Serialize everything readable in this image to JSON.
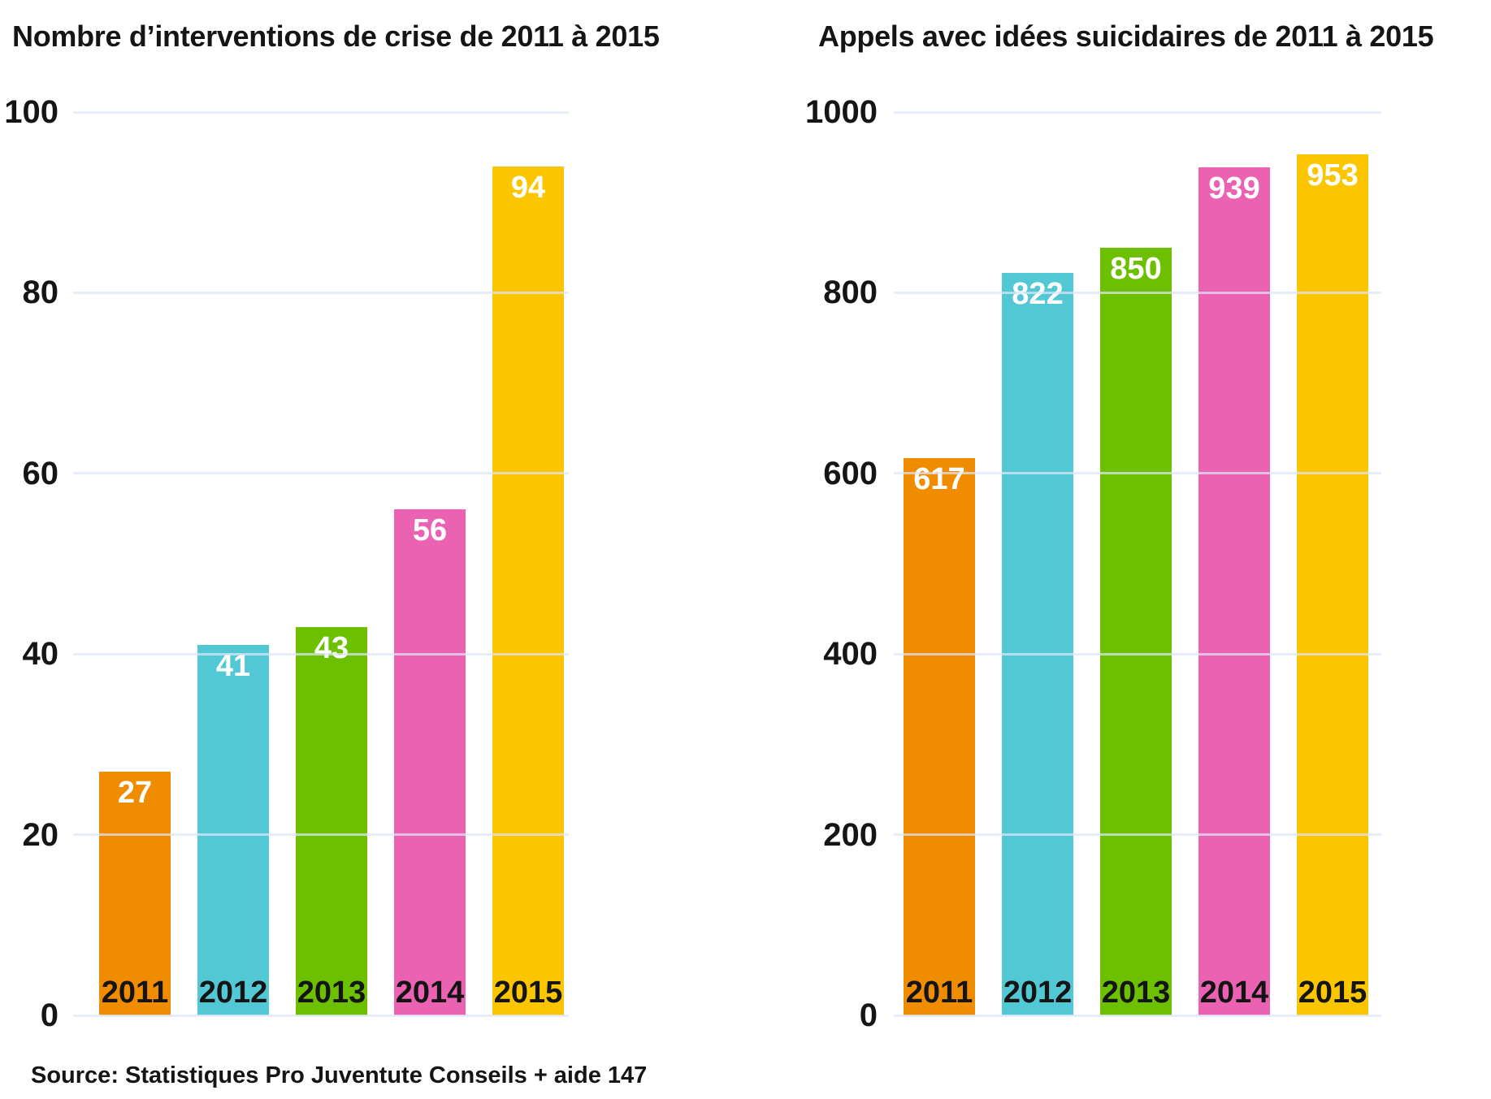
{
  "source": "Source: Statistiques Pro Juventute Conseils + aide 147",
  "palette": {
    "orange": "#F08C00",
    "cyan": "#53C8D5",
    "green": "#6CC000",
    "pink": "#EC62B2",
    "yellow": "#FBC600",
    "gridline": "#DEE5F8",
    "text": "#151515",
    "value_label": "#FFFFFF"
  },
  "chart_data": [
    {
      "type": "bar",
      "title": "Nombre d’interventions de crise de 2011 à 2015",
      "categories": [
        "2011",
        "2012",
        "2013",
        "2014",
        "2015"
      ],
      "values": [
        27,
        41,
        43,
        56,
        94
      ],
      "xlabel": "",
      "ylabel": "",
      "ylim": [
        0,
        100
      ],
      "yticks": [
        0,
        20,
        40,
        60,
        80,
        100
      ],
      "grid": true,
      "legend": "none",
      "bar_colors": [
        "#F08C00",
        "#53C8D5",
        "#6CC000",
        "#EC62B2",
        "#FBC600"
      ]
    },
    {
      "type": "bar",
      "title": "Appels avec idées suicidaires de 2011 à 2015",
      "categories": [
        "2011",
        "2012",
        "2013",
        "2014",
        "2015"
      ],
      "values": [
        617,
        822,
        850,
        939,
        953
      ],
      "xlabel": "",
      "ylabel": "",
      "ylim": [
        0,
        1000
      ],
      "yticks": [
        0,
        200,
        400,
        600,
        800,
        1000
      ],
      "grid": true,
      "legend": "none",
      "bar_colors": [
        "#F08C00",
        "#53C8D5",
        "#6CC000",
        "#EC62B2",
        "#FBC600"
      ]
    }
  ]
}
